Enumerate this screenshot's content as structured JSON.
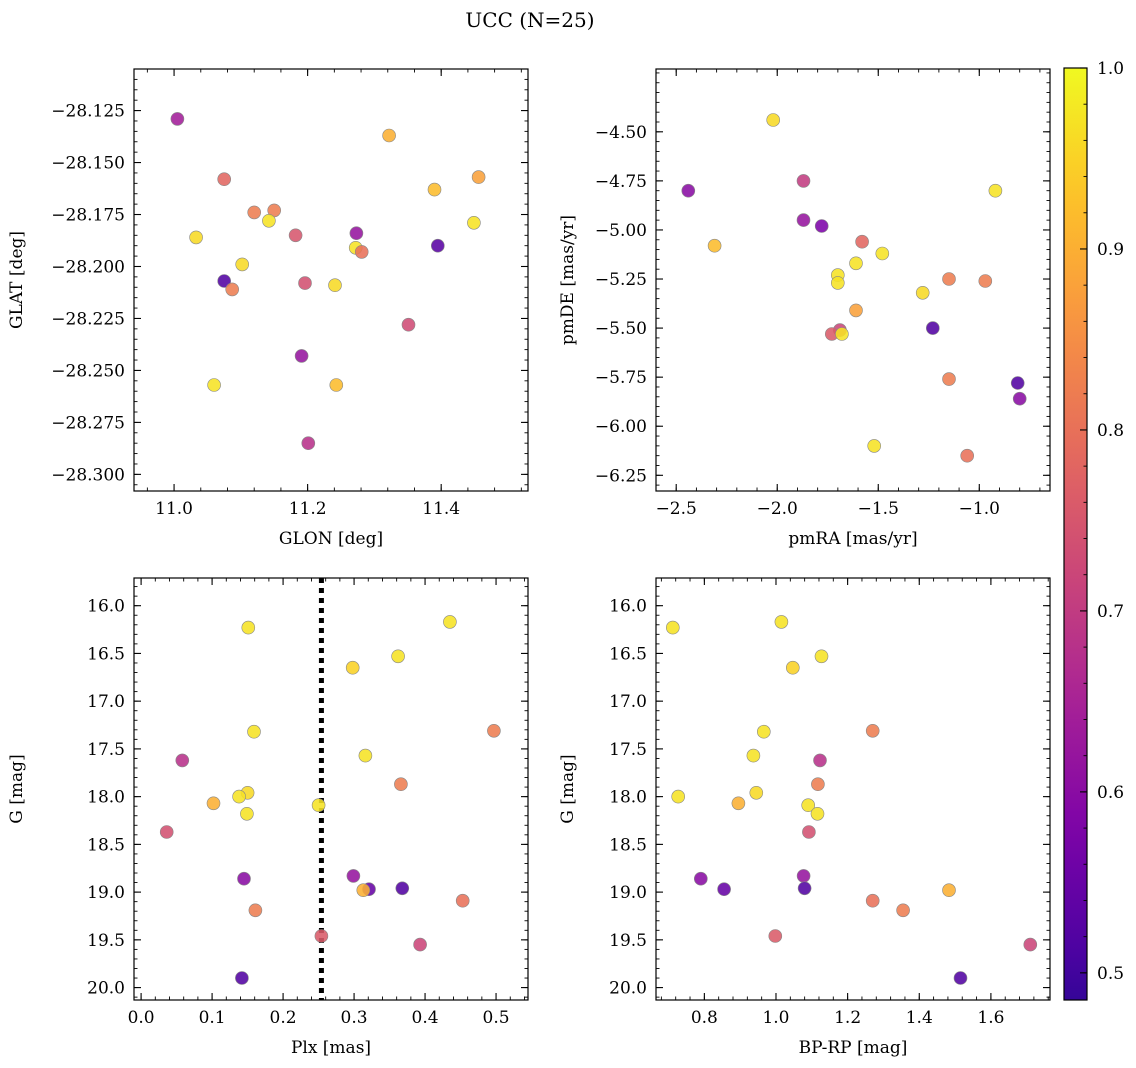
{
  "figure": {
    "title": "UCC (N=25)"
  },
  "colorbar": {
    "range": [
      0.485,
      1.0
    ],
    "ticks": [
      0.5,
      0.6,
      0.7,
      0.8,
      0.9,
      1.0
    ],
    "tick_labels": [
      "0.5",
      "0.6",
      "0.7",
      "0.8",
      "0.9",
      "1.0"
    ],
    "colormap": "plasma"
  },
  "chart_data": [
    {
      "type": "scatter",
      "id": "glon-glat",
      "xlabel": "GLON [deg]",
      "ylabel": "GLAT [deg]",
      "xlim": [
        10.94,
        11.53
      ],
      "ylim": [
        -28.308,
        -28.105
      ],
      "xticks": [
        11.0,
        11.2,
        11.4
      ],
      "xtick_labels": [
        "11.0",
        "11.2",
        "11.4"
      ],
      "yticks": [
        -28.125,
        -28.15,
        -28.175,
        -28.2,
        -28.225,
        -28.25,
        -28.275,
        -28.3
      ],
      "ytick_labels": [
        "−28.125",
        "−28.150",
        "−28.175",
        "−28.200",
        "−28.225",
        "−28.250",
        "−28.275",
        "−28.300"
      ],
      "x": [
        11.005,
        11.075,
        11.322,
        11.39,
        11.456,
        11.12,
        11.15,
        11.142,
        11.182,
        11.273,
        11.449,
        11.033,
        11.272,
        11.395,
        11.281,
        11.102,
        11.075,
        11.087,
        11.196,
        11.241,
        11.351,
        11.191,
        11.06,
        11.243,
        11.201
      ],
      "y": [
        -28.129,
        -28.158,
        -28.137,
        -28.163,
        -28.157,
        -28.174,
        -28.173,
        -28.178,
        -28.185,
        -28.184,
        -28.179,
        -28.186,
        -28.191,
        -28.19,
        -28.193,
        -28.199,
        -28.207,
        -28.211,
        -28.208,
        -28.209,
        -28.228,
        -28.243,
        -28.257,
        -28.257,
        -28.285
      ],
      "color_values": [
        0.64,
        0.78,
        0.9,
        0.92,
        0.88,
        0.82,
        0.82,
        0.97,
        0.75,
        0.62,
        0.97,
        0.96,
        0.97,
        0.53,
        0.8,
        0.96,
        0.52,
        0.82,
        0.74,
        0.96,
        0.73,
        0.62,
        0.97,
        0.92,
        0.68
      ]
    },
    {
      "type": "scatter",
      "id": "pmra-pmde",
      "xlabel": "pmRA [mas/yr]",
      "ylabel": "pmDE [mas/yr]",
      "xlim": [
        -2.6,
        -0.65
      ],
      "ylim": [
        -6.33,
        -4.18
      ],
      "xticks": [
        -2.5,
        -2.0,
        -1.5,
        -1.0
      ],
      "xtick_labels": [
        "−2.5",
        "−2.0",
        "−1.5",
        "−1.0"
      ],
      "yticks": [
        -4.5,
        -4.75,
        -5.0,
        -5.25,
        -5.5,
        -5.75,
        -6.0,
        -6.25
      ],
      "ytick_labels": [
        "−4.50",
        "−4.75",
        "−5.00",
        "−5.25",
        "−5.50",
        "−5.75",
        "−6.00",
        "−6.25"
      ],
      "x": [
        -2.02,
        -2.44,
        -0.92,
        -1.87,
        -1.87,
        -1.78,
        -2.31,
        -1.58,
        -1.48,
        -1.61,
        -1.7,
        -1.7,
        -1.15,
        -0.97,
        -1.28,
        -1.61,
        -1.23,
        -1.69,
        -1.73,
        -1.68,
        -1.15,
        -0.81,
        -0.8,
        -1.52,
        -1.06
      ],
      "y": [
        -4.44,
        -4.8,
        -4.8,
        -4.75,
        -4.95,
        -4.98,
        -5.08,
        -5.06,
        -5.12,
        -5.17,
        -5.23,
        -5.27,
        -5.25,
        -5.26,
        -5.32,
        -5.41,
        -5.5,
        -5.51,
        -5.53,
        -5.53,
        -5.76,
        -5.78,
        -5.86,
        -6.1,
        -6.15
      ],
      "color_values": [
        0.96,
        0.6,
        0.97,
        0.7,
        0.62,
        0.58,
        0.92,
        0.78,
        0.97,
        0.97,
        0.97,
        0.97,
        0.82,
        0.82,
        0.96,
        0.88,
        0.52,
        0.72,
        0.76,
        0.97,
        0.82,
        0.52,
        0.6,
        0.97,
        0.8
      ]
    },
    {
      "type": "scatter",
      "id": "plx-g",
      "xlabel": "Plx [mas]",
      "ylabel": "G [mag]",
      "xlim": [
        -0.01,
        0.545
      ],
      "ylim": [
        20.13,
        15.71
      ],
      "y_inverted": true,
      "xticks": [
        0.0,
        0.1,
        0.2,
        0.3,
        0.4,
        0.5
      ],
      "xtick_labels": [
        "0.0",
        "0.1",
        "0.2",
        "0.3",
        "0.4",
        "0.5"
      ],
      "yticks": [
        16.0,
        16.5,
        17.0,
        17.5,
        18.0,
        18.5,
        19.0,
        19.5,
        20.0
      ],
      "ytick_labels": [
        "16.0",
        "16.5",
        "17.0",
        "17.5",
        "18.0",
        "18.5",
        "19.0",
        "19.5",
        "20.0"
      ],
      "reference_line": {
        "x": 0.254,
        "style": "dotted"
      },
      "x": [
        0.435,
        0.151,
        0.362,
        0.298,
        0.497,
        0.159,
        0.316,
        0.058,
        0.366,
        0.15,
        0.102,
        0.138,
        0.25,
        0.149,
        0.036,
        0.299,
        0.145,
        0.321,
        0.368,
        0.313,
        0.453,
        0.161,
        0.254,
        0.393,
        0.142
      ],
      "y": [
        16.17,
        16.23,
        16.53,
        16.65,
        17.31,
        17.32,
        17.57,
        17.62,
        17.87,
        17.96,
        18.07,
        18.0,
        18.09,
        18.18,
        18.37,
        18.83,
        18.86,
        18.97,
        18.96,
        18.98,
        19.09,
        19.19,
        19.46,
        19.55,
        19.9
      ],
      "color_values": [
        0.97,
        0.97,
        0.97,
        0.95,
        0.82,
        0.97,
        0.97,
        0.68,
        0.82,
        0.96,
        0.9,
        0.97,
        0.97,
        0.97,
        0.74,
        0.62,
        0.6,
        0.55,
        0.52,
        0.9,
        0.8,
        0.82,
        0.76,
        0.72,
        0.52
      ]
    },
    {
      "type": "scatter",
      "id": "bprp-g",
      "xlabel": "BP-RP [mag]",
      "ylabel": "G [mag]",
      "xlim": [
        0.665,
        1.765
      ],
      "ylim": [
        20.13,
        15.71
      ],
      "y_inverted": true,
      "xticks": [
        0.8,
        1.0,
        1.2,
        1.4,
        1.6
      ],
      "xtick_labels": [
        "0.8",
        "1.0",
        "1.2",
        "1.4",
        "1.6"
      ],
      "yticks": [
        16.0,
        16.5,
        17.0,
        17.5,
        18.0,
        18.5,
        19.0,
        19.5,
        20.0
      ],
      "ytick_labels": [
        "16.0",
        "16.5",
        "17.0",
        "17.5",
        "18.0",
        "18.5",
        "19.0",
        "19.5",
        "20.0"
      ],
      "x": [
        1.015,
        0.712,
        1.127,
        1.047,
        1.27,
        0.966,
        0.937,
        1.123,
        1.117,
        0.945,
        0.895,
        0.727,
        1.09,
        1.116,
        1.092,
        1.077,
        0.79,
        0.855,
        1.08,
        1.483,
        1.27,
        1.355,
        0.998,
        1.71,
        1.515
      ],
      "y": [
        16.17,
        16.23,
        16.53,
        16.65,
        17.31,
        17.32,
        17.57,
        17.62,
        17.87,
        17.96,
        18.07,
        18.0,
        18.09,
        18.18,
        18.37,
        18.83,
        18.86,
        18.97,
        18.96,
        18.98,
        19.09,
        19.19,
        19.46,
        19.55,
        19.9
      ],
      "color_values": [
        0.97,
        0.97,
        0.97,
        0.95,
        0.82,
        0.97,
        0.97,
        0.68,
        0.82,
        0.96,
        0.9,
        0.97,
        0.97,
        0.97,
        0.74,
        0.62,
        0.6,
        0.55,
        0.52,
        0.9,
        0.8,
        0.82,
        0.76,
        0.72,
        0.52
      ]
    }
  ]
}
